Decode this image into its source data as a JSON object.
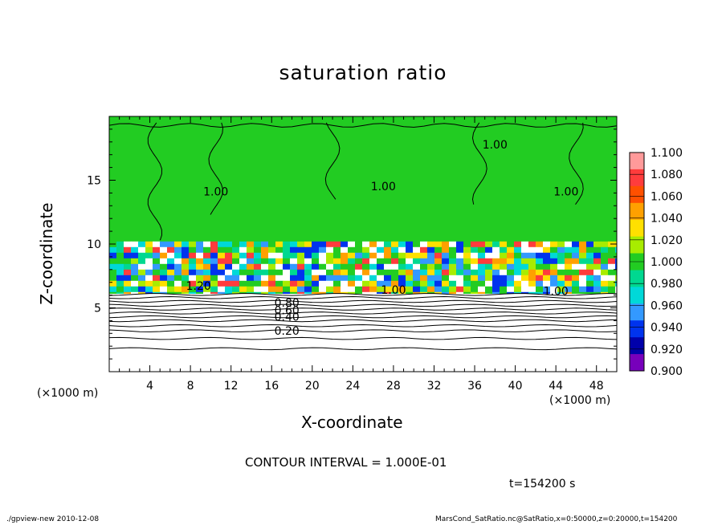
{
  "chart_data": {
    "type": "heatmap",
    "title": "saturation ratio",
    "xlabel": "X-coordinate",
    "ylabel": "Z-coordinate",
    "x_unit_label": "(×1000 m)",
    "x_unit_label_right": "(×1000 m)",
    "xlim": [
      0,
      50
    ],
    "ylim": [
      0,
      20
    ],
    "x_ticks": [
      4,
      8,
      12,
      16,
      20,
      24,
      28,
      32,
      36,
      40,
      44,
      48
    ],
    "y_ticks": [
      5,
      10,
      15
    ],
    "colorbar": {
      "levels": [
        "1.100",
        "1.080",
        "1.060",
        "1.040",
        "1.020",
        "1.000",
        "0.980",
        "0.960",
        "0.940",
        "0.920",
        "0.900"
      ],
      "colors": [
        "#ff9a9a",
        "#ff3c3c",
        "#ff5000",
        "#ffa000",
        "#ffe000",
        "#a8ec00",
        "#22cc22",
        "#00d890",
        "#00d8d8",
        "#3399ff",
        "#0033ee",
        "#0000aa",
        "#7700bb"
      ]
    },
    "contour_labels": [
      {
        "text": "1.00",
        "x": 10.5,
        "z": 13.8
      },
      {
        "text": "1.00",
        "x": 27,
        "z": 14.2
      },
      {
        "text": "1.00",
        "x": 38,
        "z": 17.5
      },
      {
        "text": "1.00",
        "x": 45,
        "z": 13.8
      },
      {
        "text": "1.20",
        "x": 8.8,
        "z": 6.4
      },
      {
        "text": "1.00",
        "x": 28,
        "z": 6.1
      },
      {
        "text": "1.00",
        "x": 44,
        "z": 6.0
      },
      {
        "text": "0.80",
        "x": 17.5,
        "z": 5.1
      },
      {
        "text": "0.60",
        "x": 17.5,
        "z": 4.5
      },
      {
        "text": "0.40",
        "x": 17.5,
        "z": 4.0
      },
      {
        "text": "0.20",
        "x": 17.5,
        "z": 2.9
      }
    ],
    "contour_interval_text": "CONTOUR INTERVAL = 1.000E-01",
    "time_text": "t=154200 s"
  },
  "footer": {
    "left": "./gpview-new  2010-12-08",
    "right": "MarsCond_SatRatio.nc@SatRatio,x=0:50000,z=0:20000,t=154200"
  },
  "colors": {
    "saturated_green": "#22cc22",
    "background": "#ffffff"
  }
}
